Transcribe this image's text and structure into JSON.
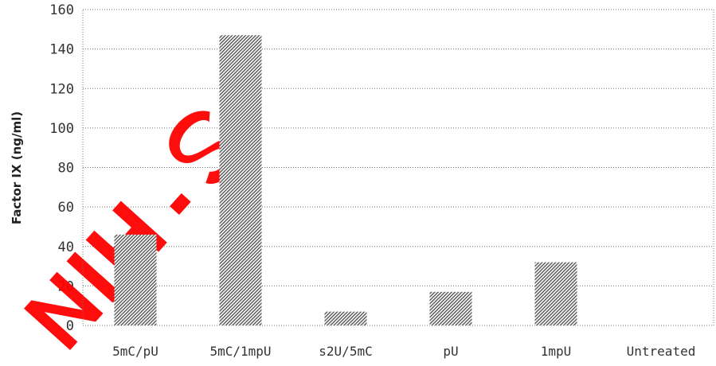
{
  "chart_data": {
    "type": "bar",
    "title": "",
    "xlabel": "",
    "ylabel": "Factor IX (ng/ml)",
    "ylim": [
      0,
      160
    ],
    "yticks": [
      0,
      20,
      40,
      60,
      80,
      100,
      120,
      140,
      160
    ],
    "grid": true,
    "legend": "none",
    "categories": [
      "5mC/pU",
      "5mC/1mpU",
      "s2U/5mC",
      "pU",
      "1mpU",
      "Untreated"
    ],
    "values": [
      46,
      147,
      7,
      17,
      32,
      0
    ],
    "bar_color": "#555555",
    "watermark_color": "#ff0000"
  }
}
